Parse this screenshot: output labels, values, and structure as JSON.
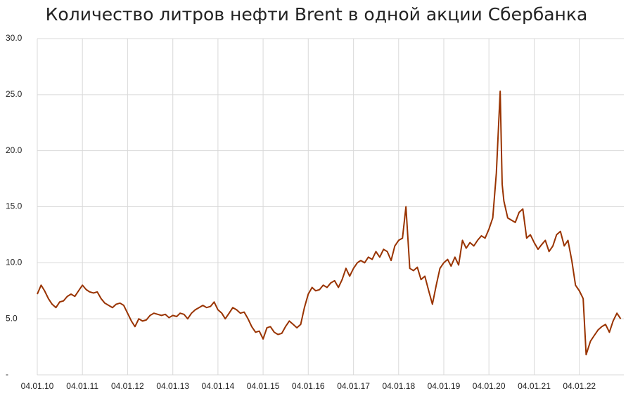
{
  "chart_data": {
    "type": "line",
    "title": "Количество литров нефти Brent в одной акции Сбербанка",
    "x": [
      "2010-01-04",
      "2010-02-04",
      "2010-03-04",
      "2010-04-04",
      "2010-05-04",
      "2010-06-04",
      "2010-07-04",
      "2010-08-04",
      "2010-09-04",
      "2010-10-04",
      "2010-11-04",
      "2010-12-04",
      "2011-01-04",
      "2011-02-04",
      "2011-03-04",
      "2011-04-04",
      "2011-05-04",
      "2011-06-04",
      "2011-07-04",
      "2011-08-04",
      "2011-09-04",
      "2011-10-04",
      "2011-11-04",
      "2011-12-04",
      "2012-01-04",
      "2012-02-04",
      "2012-03-04",
      "2012-04-04",
      "2012-05-04",
      "2012-06-04",
      "2012-07-04",
      "2012-08-04",
      "2012-09-04",
      "2012-10-04",
      "2012-11-04",
      "2012-12-04",
      "2013-01-04",
      "2013-02-04",
      "2013-03-04",
      "2013-04-04",
      "2013-05-04",
      "2013-06-04",
      "2013-07-04",
      "2013-08-04",
      "2013-09-04",
      "2013-10-04",
      "2013-11-04",
      "2013-12-04",
      "2014-01-04",
      "2014-02-04",
      "2014-03-04",
      "2014-04-04",
      "2014-05-04",
      "2014-06-04",
      "2014-07-04",
      "2014-08-04",
      "2014-09-04",
      "2014-10-04",
      "2014-11-04",
      "2014-12-04",
      "2015-01-04",
      "2015-02-04",
      "2015-03-04",
      "2015-04-04",
      "2015-05-04",
      "2015-06-04",
      "2015-07-04",
      "2015-08-04",
      "2015-09-04",
      "2015-10-04",
      "2015-11-04",
      "2015-12-04",
      "2016-01-04",
      "2016-02-04",
      "2016-03-04",
      "2016-04-04",
      "2016-05-04",
      "2016-06-04",
      "2016-07-04",
      "2016-08-04",
      "2016-09-04",
      "2016-10-04",
      "2016-11-04",
      "2016-12-04",
      "2017-01-04",
      "2017-02-04",
      "2017-03-04",
      "2017-04-04",
      "2017-05-04",
      "2017-06-04",
      "2017-07-04",
      "2017-08-04",
      "2017-09-04",
      "2017-10-04",
      "2017-11-04",
      "2017-12-04",
      "2018-01-04",
      "2018-02-04",
      "2018-03-04",
      "2018-04-04",
      "2018-05-04",
      "2018-06-04",
      "2018-07-04",
      "2018-08-04",
      "2018-09-04",
      "2018-10-04",
      "2018-11-04",
      "2018-12-04",
      "2019-01-04",
      "2019-02-04",
      "2019-03-04",
      "2019-04-04",
      "2019-05-04",
      "2019-06-04",
      "2019-07-04",
      "2019-08-04",
      "2019-09-04",
      "2019-10-04",
      "2019-11-04",
      "2019-12-04",
      "2020-01-04",
      "2020-02-04",
      "2020-03-04",
      "2020-04-04",
      "2020-04-20",
      "2020-05-04",
      "2020-06-04",
      "2020-07-04",
      "2020-08-04",
      "2020-09-04",
      "2020-10-04",
      "2020-11-04",
      "2020-12-04",
      "2021-01-04",
      "2021-02-04",
      "2021-03-04",
      "2021-04-04",
      "2021-05-04",
      "2021-06-04",
      "2021-07-04",
      "2021-08-04",
      "2021-09-04",
      "2021-10-04",
      "2021-11-04",
      "2021-12-04",
      "2022-01-04",
      "2022-02-04",
      "2022-02-28",
      "2022-04-04",
      "2022-05-04",
      "2022-06-04",
      "2022-07-04",
      "2022-08-04",
      "2022-09-04",
      "2022-10-04",
      "2022-11-04",
      "2022-12-04"
    ],
    "series": [
      {
        "name": "Brent",
        "color": "#993300",
        "values": [
          7.2,
          8.0,
          7.5,
          6.8,
          6.3,
          6.0,
          6.5,
          6.6,
          7.0,
          7.2,
          7.0,
          7.5,
          8.0,
          7.6,
          7.4,
          7.3,
          7.4,
          6.8,
          6.4,
          6.2,
          6.0,
          6.3,
          6.4,
          6.2,
          5.5,
          4.8,
          4.3,
          5.0,
          4.8,
          4.9,
          5.3,
          5.5,
          5.4,
          5.3,
          5.4,
          5.1,
          5.3,
          5.2,
          5.5,
          5.4,
          5.0,
          5.5,
          5.8,
          6.0,
          6.2,
          6.0,
          6.1,
          6.5,
          5.8,
          5.5,
          5.0,
          5.5,
          6.0,
          5.8,
          5.5,
          5.6,
          5.0,
          4.3,
          3.8,
          3.9,
          3.2,
          4.2,
          4.3,
          3.8,
          3.6,
          3.7,
          4.3,
          4.8,
          4.5,
          4.2,
          4.5,
          6.0,
          7.2,
          7.8,
          7.5,
          7.6,
          8.0,
          7.8,
          8.2,
          8.4,
          7.8,
          8.5,
          9.5,
          8.8,
          9.5,
          10.0,
          10.2,
          10.0,
          10.5,
          10.3,
          11.0,
          10.5,
          11.2,
          11.0,
          10.2,
          11.5,
          12.0,
          12.2,
          15.0,
          9.5,
          9.3,
          9.6,
          8.5,
          8.8,
          7.5,
          6.3,
          8.0,
          9.5,
          10.0,
          10.3,
          9.7,
          10.5,
          9.8,
          12.0,
          11.3,
          11.8,
          11.5,
          12.0,
          12.4,
          12.2,
          13.0,
          14.0,
          18.0,
          25.3,
          17.0,
          15.5,
          14.0,
          13.8,
          13.6,
          14.5,
          14.8,
          12.2,
          12.5,
          11.8,
          11.2,
          11.6,
          12.0,
          11.0,
          11.5,
          12.5,
          12.8,
          11.5,
          12.0,
          10.2,
          8.0,
          7.5,
          6.8,
          1.8,
          3.0,
          3.5,
          4.0,
          4.3,
          4.5,
          3.8,
          4.8,
          5.5,
          5.0
        ]
      }
    ],
    "xlim": [
      "2010-01-04",
      "2022-12-30"
    ],
    "xticks": [
      {
        "value": "2010-01-04",
        "label": "04.01.10"
      },
      {
        "value": "2011-01-04",
        "label": "04.01.11"
      },
      {
        "value": "2012-01-04",
        "label": "04.01.12"
      },
      {
        "value": "2013-01-04",
        "label": "04.01.13"
      },
      {
        "value": "2014-01-04",
        "label": "04.01.14"
      },
      {
        "value": "2015-01-04",
        "label": "04.01.15"
      },
      {
        "value": "2016-01-04",
        "label": "04.01.16"
      },
      {
        "value": "2017-01-04",
        "label": "04.01.17"
      },
      {
        "value": "2018-01-04",
        "label": "04.01.18"
      },
      {
        "value": "2019-01-04",
        "label": "04.01.19"
      },
      {
        "value": "2020-01-04",
        "label": "04.01.20"
      },
      {
        "value": "2021-01-04",
        "label": "04.01.21"
      },
      {
        "value": "2022-01-04",
        "label": "04.01.22"
      }
    ],
    "ylim": [
      0,
      30
    ],
    "yticks": [
      {
        "value": 0,
        "label": "-"
      },
      {
        "value": 5,
        "label": "5.0"
      },
      {
        "value": 10,
        "label": "10.0"
      },
      {
        "value": 15,
        "label": "15.0"
      },
      {
        "value": 20,
        "label": "20.0"
      },
      {
        "value": 25,
        "label": "25.0"
      },
      {
        "value": 30,
        "label": "30.0"
      }
    ],
    "grid": true
  }
}
